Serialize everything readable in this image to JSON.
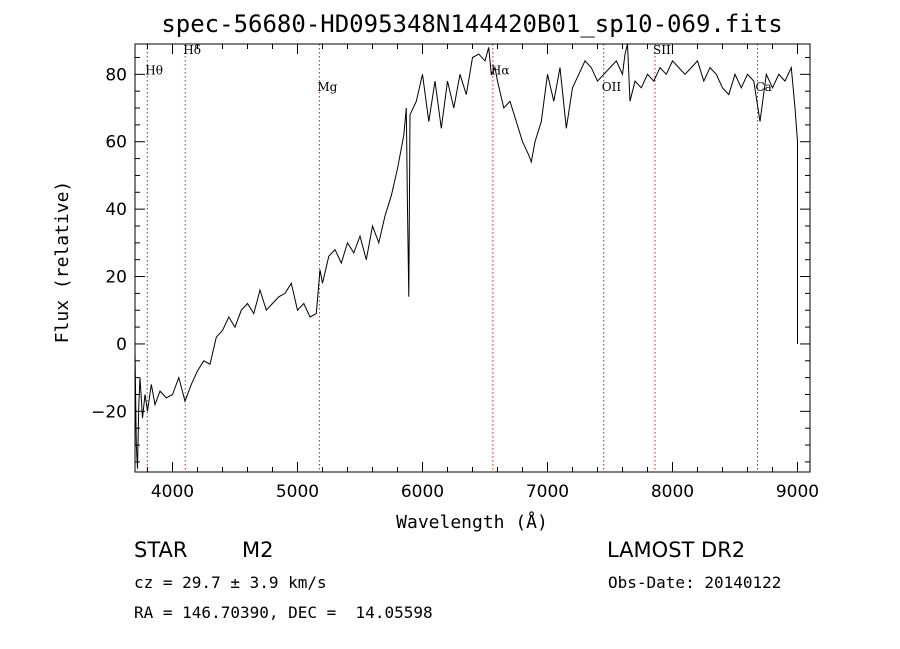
{
  "chart_data": {
    "type": "line",
    "title": "spec-56680-HD095348N144420B01_sp10-069.fits",
    "xlabel": "Wavelength (Å)",
    "ylabel": "Flux (relative)",
    "xlim": [
      3700,
      9100
    ],
    "ylim": [
      -38,
      89
    ],
    "xticks": [
      4000,
      5000,
      6000,
      7000,
      8000,
      9000
    ],
    "xtick_labels": [
      "4000",
      "5000",
      "6000",
      "7000",
      "8000",
      "9000"
    ],
    "yticks": [
      -20,
      0,
      20,
      40,
      60,
      80
    ],
    "ytick_labels": [
      "−20",
      "0",
      "20",
      "40",
      "60",
      "80"
    ],
    "grid": false,
    "line_color": "#000000",
    "marker_color": "#b22222",
    "series": [
      {
        "x": [
          3700,
          3710,
          3720,
          3730,
          3740,
          3760,
          3780,
          3800,
          3830,
          3860,
          3900,
          3950,
          4000,
          4050,
          4100,
          4150,
          4200,
          4250,
          4300,
          4350,
          4400,
          4450,
          4500,
          4550,
          4600,
          4650,
          4700,
          4750,
          4800,
          4850,
          4900,
          4950,
          5000,
          5050,
          5100,
          5150,
          5180,
          5200,
          5250,
          5300,
          5350,
          5400,
          5450,
          5500,
          5550,
          5600,
          5650,
          5700,
          5750,
          5800,
          5850,
          5870,
          5880,
          5890,
          5900,
          5950,
          6000,
          6050,
          6100,
          6150,
          6200,
          6250,
          6300,
          6350,
          6400,
          6450,
          6500,
          6530,
          6550,
          6580,
          6600,
          6650,
          6700,
          6750,
          6800,
          6850,
          6870,
          6900,
          6950,
          7000,
          7050,
          7100,
          7150,
          7200,
          7250,
          7300,
          7350,
          7400,
          7450,
          7500,
          7550,
          7600,
          7620,
          7640,
          7660,
          7700,
          7750,
          7800,
          7850,
          7900,
          7950,
          8000,
          8050,
          8100,
          8150,
          8200,
          8250,
          8300,
          8350,
          8400,
          8450,
          8500,
          8550,
          8600,
          8650,
          8700,
          8750,
          8800,
          8850,
          8900,
          8950,
          8980,
          9000,
          9000
        ],
        "y": [
          -2,
          -30,
          -37,
          -18,
          -10,
          -22,
          -15,
          -20,
          -12,
          -18,
          -14,
          -16,
          -15,
          -10,
          -17,
          -12,
          -8,
          -5,
          -6,
          2,
          4,
          8,
          5,
          10,
          12,
          9,
          16,
          10,
          12,
          14,
          15,
          18,
          10,
          12,
          8,
          9,
          22,
          18,
          26,
          28,
          24,
          30,
          27,
          32,
          25,
          35,
          30,
          38,
          44,
          52,
          62,
          70,
          40,
          14,
          68,
          72,
          80,
          66,
          78,
          64,
          78,
          70,
          80,
          74,
          85,
          86,
          84,
          88,
          80,
          82,
          78,
          70,
          72,
          66,
          60,
          56,
          54,
          60,
          66,
          80,
          72,
          82,
          64,
          76,
          80,
          84,
          82,
          78,
          80,
          82,
          84,
          80,
          86,
          90,
          72,
          78,
          76,
          80,
          78,
          82,
          80,
          84,
          82,
          80,
          82,
          84,
          78,
          82,
          80,
          76,
          74,
          80,
          76,
          80,
          78,
          66,
          80,
          76,
          80,
          78,
          82,
          70,
          60,
          0
        ]
      }
    ],
    "line_markers": [
      {
        "label": "Hθ",
        "x": 3798,
        "label_y": 80
      },
      {
        "label": "Hδ",
        "x": 4102,
        "label_y": 86
      },
      {
        "label": "Mg",
        "x": 5175,
        "label_y": 75
      },
      {
        "label": "Hα",
        "x": 6563,
        "label_y": 80
      },
      {
        "label": "OII",
        "x": 7450,
        "label_y": 75
      },
      {
        "label": "SII",
        "x": 7860,
        "label_y": 86
      },
      {
        "label": "Ca",
        "x": 8680,
        "label_y": 75
      }
    ]
  },
  "info": {
    "class_label": "STAR",
    "subclass_label": "M2",
    "survey": "LAMOST DR2",
    "redshift": "cz = 29.7 ± 3.9 km/s",
    "obs_date": "Obs-Date: 20140122",
    "coords": "RA = 146.70390, DEC =  14.05598"
  }
}
